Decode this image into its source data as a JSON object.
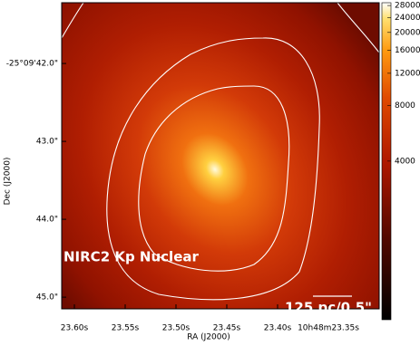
{
  "chart_data": {
    "type": "image",
    "x_label": "RA (J2000)",
    "y_label": "Dec (J2000)",
    "xlim": [
      23.6125,
      23.3
    ],
    "xticks": [
      {
        "value": 23.6,
        "label": "23.60s"
      },
      {
        "value": 23.55,
        "label": "23.55s"
      },
      {
        "value": 23.5,
        "label": "23.50s"
      },
      {
        "value": 23.45,
        "label": "23.45s"
      },
      {
        "value": 23.4,
        "label": "23.40s"
      },
      {
        "value": 23.35,
        "label": "10h48m23.35s"
      }
    ],
    "ylim": [
      45.15,
      41.22
    ],
    "yticks": [
      {
        "value": 42,
        "label": "-25°09'42.0\""
      },
      {
        "value": 43,
        "label": "43.0\""
      },
      {
        "value": 44,
        "label": "44.0\""
      },
      {
        "value": 45,
        "label": "45.0\""
      }
    ],
    "colorbar": {
      "scale": "log",
      "lim": [
        550,
        29000
      ],
      "ticks": [
        4000,
        8000,
        12000,
        16000,
        20000,
        24000,
        28000
      ]
    },
    "annotations": [
      "NIRC2 Kp Nuclear",
      "125 pc/0.5\""
    ]
  }
}
